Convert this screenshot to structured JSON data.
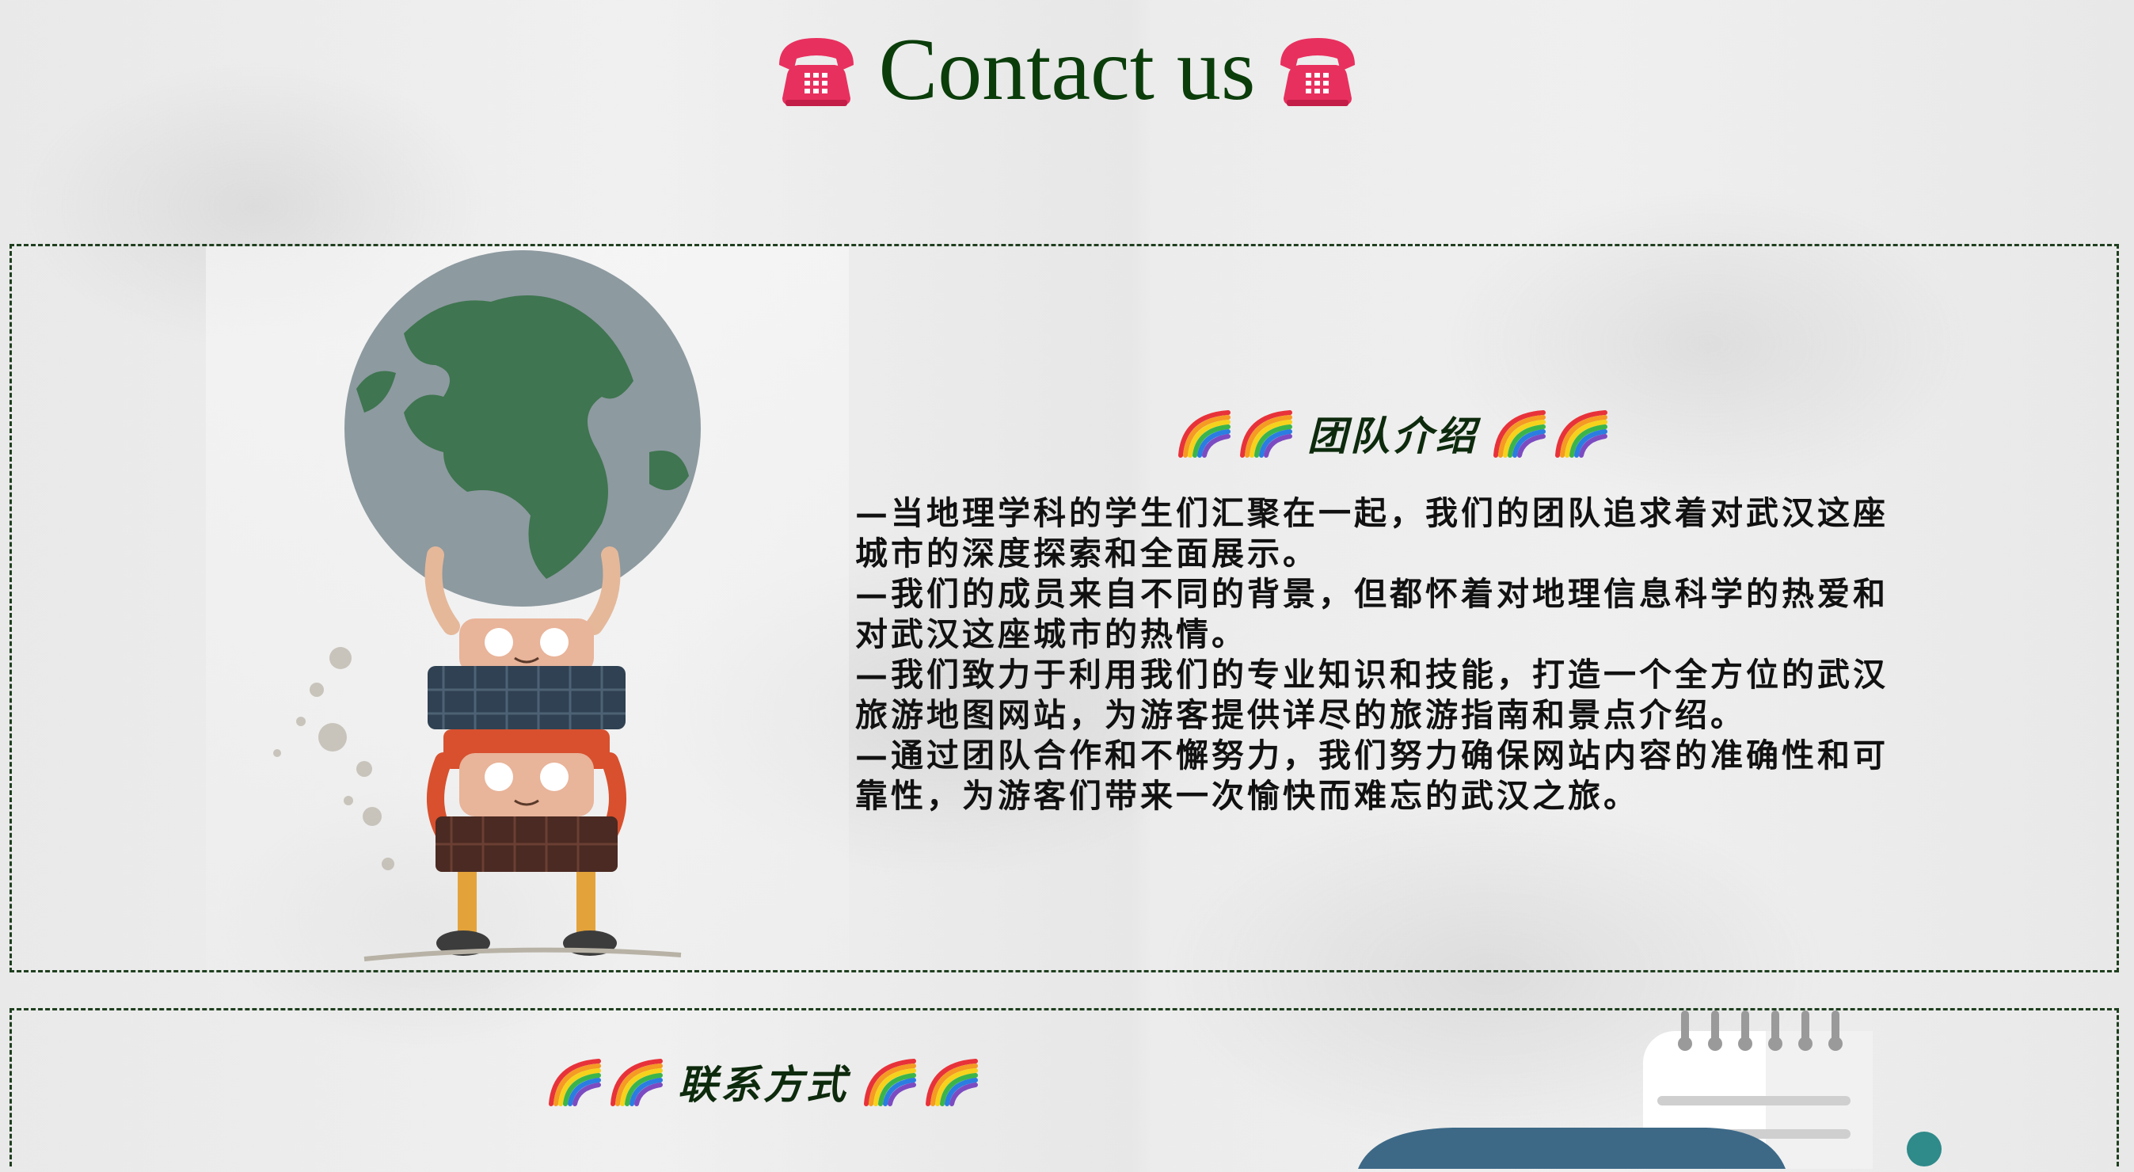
{
  "header": {
    "title": "Contact us",
    "icon_left": "telephone-icon",
    "icon_right": "telephone-icon"
  },
  "team_section": {
    "heading": "团队介绍",
    "heading_icons": [
      "rainbow-icon",
      "rainbow-icon",
      "rainbow-icon",
      "rainbow-icon"
    ],
    "illustration": "globe-kids-illustration",
    "lines": [
      "—当地理学科的学生们汇聚在一起，我们的团队追求着对武汉这座",
      "城市的深度探索和全面展示。",
      "—我们的成员来自不同的背景，但都怀着对地理信息科学的热爱和",
      "对武汉这座城市的热情。",
      "—我们致力于利用我们的专业知识和技能，打造一个全方位的武汉",
      "旅游地图网站，为游客提供详尽的旅游指南和景点介绍。",
      "—通过团队合作和不懈努力，我们努力确保网站内容的准确性和可",
      "靠性，为游客们带来一次愉快而难忘的武汉之旅。"
    ]
  },
  "contact_section": {
    "heading": "联系方式",
    "heading_icons": [
      "rainbow-icon",
      "rainbow-icon",
      "rainbow-icon",
      "rainbow-icon"
    ],
    "illustration": "notepad-illustration"
  },
  "colors": {
    "title": "#0a3d0a",
    "heading": "#0d2a0d",
    "border": "#1f3f1f",
    "phone": "#e8305e",
    "globe_land": "#3f7550",
    "globe_sea": "#8d9aa0"
  }
}
